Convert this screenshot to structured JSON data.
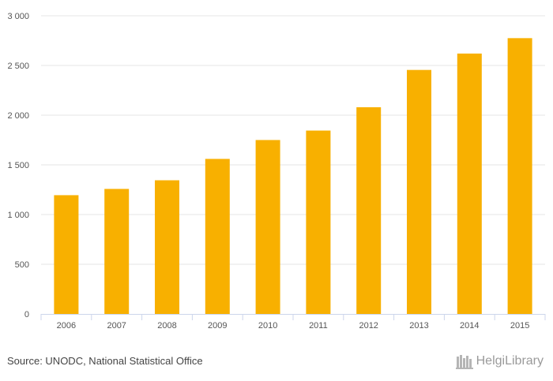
{
  "chart_data": {
    "type": "bar",
    "categories": [
      "2006",
      "2007",
      "2008",
      "2009",
      "2010",
      "2011",
      "2012",
      "2013",
      "2014",
      "2015"
    ],
    "values": [
      1195,
      1258,
      1345,
      1560,
      1750,
      1845,
      2080,
      2455,
      2620,
      2775
    ],
    "ylim": [
      0,
      3000
    ],
    "yticks": [
      0,
      500,
      1000,
      1500,
      2000,
      2500,
      3000
    ],
    "ytick_labels": [
      "0",
      "500",
      "1 000",
      "1 500",
      "2 000",
      "2 500",
      "3 000"
    ],
    "bar_color": "#f8b000",
    "grid": true,
    "title": "",
    "xlabel": "",
    "ylabel": ""
  },
  "footer": {
    "source": "Source: UNODC, National Statistical Office",
    "logo_text": "HelgiLibrary"
  }
}
